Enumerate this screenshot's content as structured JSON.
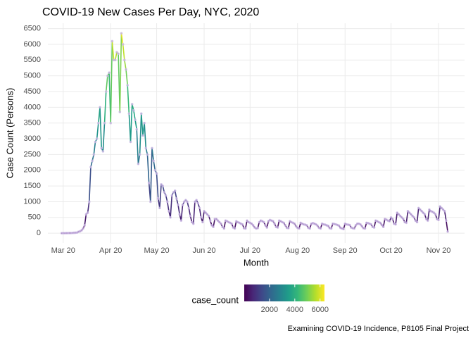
{
  "chart_data": {
    "type": "line",
    "title": "COVID-19 New Cases Per Day, NYC, 2020",
    "x_label": "Month",
    "y_label": "Case Count (Persons)",
    "caption": "Examining COVID-19 Incidence, P8105 Final Project",
    "legend_title": "case_count",
    "color_scale": [
      "#440154",
      "#482878",
      "#3e4989",
      "#31688e",
      "#26828e",
      "#1f9e89",
      "#35b779",
      "#6ece58",
      "#b5de2b",
      "#fde725"
    ],
    "colorbar_lim": [
      0,
      6350
    ],
    "colorbar_ticks": [
      2000,
      4000,
      6000
    ],
    "point_color": "#c9b6e4",
    "grid": true,
    "xlim": [
      51,
      323
    ],
    "xticks": [
      {
        "value": 61,
        "label": "Mar 20"
      },
      {
        "value": 92,
        "label": "Apr 20"
      },
      {
        "value": 122,
        "label": "May 20"
      },
      {
        "value": 153,
        "label": "Jun 20"
      },
      {
        "value": 183,
        "label": "Jul 20"
      },
      {
        "value": 214,
        "label": "Aug 20"
      },
      {
        "value": 245,
        "label": "Sep 20"
      },
      {
        "value": 275,
        "label": "Oct 20"
      },
      {
        "value": 306,
        "label": "Nov 20"
      }
    ],
    "ylim": [
      -310,
      6670
    ],
    "yticks": [
      0,
      500,
      1000,
      1500,
      2000,
      2500,
      3000,
      3500,
      4000,
      4500,
      5000,
      5500,
      6000,
      6500
    ],
    "x": [
      60,
      61,
      62,
      63,
      64,
      65,
      66,
      67,
      68,
      69,
      70,
      71,
      72,
      73,
      74,
      75,
      76,
      77,
      78,
      79,
      80,
      81,
      82,
      83,
      84,
      85,
      86,
      87,
      88,
      89,
      90,
      91,
      92,
      93,
      94,
      95,
      96,
      97,
      98,
      99,
      100,
      101,
      102,
      103,
      104,
      105,
      106,
      107,
      108,
      109,
      110,
      111,
      112,
      113,
      114,
      115,
      116,
      117,
      118,
      119,
      120,
      121,
      122,
      123,
      124,
      125,
      126,
      127,
      128,
      129,
      130,
      131,
      132,
      133,
      134,
      135,
      136,
      137,
      138,
      139,
      140,
      141,
      142,
      143,
      144,
      145,
      146,
      147,
      148,
      149,
      150,
      151,
      152,
      153,
      154,
      155,
      156,
      157,
      158,
      159,
      160,
      161,
      162,
      163,
      164,
      165,
      166,
      167,
      168,
      169,
      170,
      171,
      172,
      173,
      174,
      175,
      176,
      177,
      178,
      179,
      180,
      181,
      182,
      183,
      184,
      185,
      186,
      187,
      188,
      189,
      190,
      191,
      192,
      193,
      194,
      195,
      196,
      197,
      198,
      199,
      200,
      201,
      202,
      203,
      204,
      205,
      206,
      207,
      208,
      209,
      210,
      211,
      212,
      213,
      214,
      215,
      216,
      217,
      218,
      219,
      220,
      221,
      222,
      223,
      224,
      225,
      226,
      227,
      228,
      229,
      230,
      231,
      232,
      233,
      234,
      235,
      236,
      237,
      238,
      239,
      240,
      241,
      242,
      243,
      244,
      245,
      246,
      247,
      248,
      249,
      250,
      251,
      252,
      253,
      254,
      255,
      256,
      257,
      258,
      259,
      260,
      261,
      262,
      263,
      264,
      265,
      266,
      267,
      268,
      269,
      270,
      271,
      272,
      273,
      274,
      275,
      276,
      277,
      278,
      279,
      280,
      281,
      282,
      283,
      284,
      285,
      286,
      287,
      288,
      289,
      290,
      291,
      292,
      293,
      294,
      295,
      296,
      297,
      298,
      299,
      300,
      301,
      302,
      303,
      304,
      305,
      306,
      307,
      308,
      309,
      310,
      311,
      312
    ],
    "values": [
      0,
      1,
      0,
      2,
      3,
      5,
      5,
      8,
      12,
      15,
      20,
      45,
      60,
      90,
      150,
      250,
      600,
      650,
      1000,
      2100,
      2300,
      2500,
      2900,
      3000,
      3500,
      4000,
      2700,
      2600,
      3500,
      4500,
      5000,
      5100,
      3500,
      6100,
      5500,
      5500,
      5750,
      5700,
      3850,
      6350,
      6000,
      5500,
      5200,
      4700,
      3800,
      2900,
      4100,
      3900,
      3600,
      3300,
      2200,
      2500,
      3800,
      3100,
      3500,
      2700,
      2500,
      1600,
      1000,
      2700,
      2300,
      2000,
      1900,
      1100,
      800,
      1550,
      1500,
      1300,
      1200,
      1000,
      700,
      500,
      1200,
      1300,
      1350,
      1100,
      900,
      600,
      400,
      900,
      1000,
      1050,
      1000,
      800,
      550,
      350,
      300,
      1000,
      1050,
      950,
      800,
      500,
      350,
      700,
      650,
      600,
      550,
      400,
      250,
      200,
      450,
      450,
      400,
      350,
      300,
      200,
      150,
      400,
      380,
      350,
      330,
      300,
      180,
      150,
      380,
      350,
      330,
      300,
      280,
      160,
      150,
      400,
      350,
      330,
      300,
      250,
      180,
      150,
      160,
      350,
      400,
      380,
      350,
      250,
      180,
      380,
      420,
      400,
      380,
      300,
      200,
      180,
      400,
      380,
      350,
      330,
      250,
      170,
      160,
      380,
      350,
      330,
      300,
      220,
      170,
      150,
      330,
      300,
      280,
      270,
      250,
      170,
      150,
      300,
      320,
      300,
      280,
      240,
      170,
      150,
      300,
      280,
      270,
      250,
      230,
      160,
      150,
      300,
      290,
      280,
      260,
      240,
      170,
      150,
      130,
      300,
      280,
      270,
      260,
      180,
      160,
      150,
      250,
      300,
      300,
      280,
      220,
      160,
      150,
      330,
      320,
      300,
      280,
      200,
      180,
      400,
      380,
      350,
      330,
      260,
      200,
      450,
      430,
      400,
      380,
      500,
      450,
      300,
      280,
      650,
      600,
      550,
      500,
      450,
      350,
      330,
      700,
      650,
      600,
      550,
      500,
      400,
      350,
      800,
      750,
      700,
      650,
      600,
      450,
      400,
      750,
      700,
      680,
      650,
      600,
      450,
      420,
      850,
      800,
      750,
      700,
      400,
      50
    ]
  }
}
